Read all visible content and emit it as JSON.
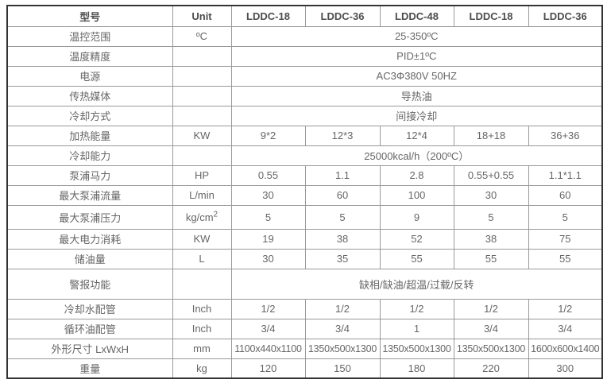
{
  "table": {
    "columns": [
      {
        "label": "型号"
      },
      {
        "label": "Unit"
      },
      {
        "label": "LDDC-18"
      },
      {
        "label": "LDDC-36"
      },
      {
        "label": "LDDC-48"
      },
      {
        "label": "LDDC-18"
      },
      {
        "label": "LDDC-36"
      }
    ],
    "rows": [
      {
        "label": "温控范围",
        "unit": "ºC",
        "span": "25-350ºC"
      },
      {
        "label": "温度精度",
        "unit": "",
        "span": "PID±1ºC"
      },
      {
        "label": "电源",
        "unit": "",
        "span": "AC3Φ380V 50HZ"
      },
      {
        "label": "传热媒体",
        "unit": "",
        "span": "导热油"
      },
      {
        "label": "冷却方式",
        "unit": "",
        "span": "间接冷却"
      },
      {
        "label": "加热能量",
        "unit": "KW",
        "values": [
          "9*2",
          "12*3",
          "12*4",
          "18+18",
          "36+36"
        ]
      },
      {
        "label": "冷却能力",
        "unit": "",
        "span": "25000kcal/h（200ºC）"
      },
      {
        "label": "泵浦马力",
        "unit": "HP",
        "values": [
          "0.55",
          "1.1",
          "2.8",
          "0.55+0.55",
          "1.1*1.1"
        ]
      },
      {
        "label": "最大泵浦流量",
        "unit": "L/min",
        "values": [
          "30",
          "60",
          "100",
          "30",
          "60"
        ]
      },
      {
        "label": "最大泵浦压力",
        "unit": "kg/cm",
        "unit_sup": "2",
        "values": [
          "5",
          "5",
          "9",
          "5",
          "5"
        ],
        "tall": "med"
      },
      {
        "label": "最大电力消耗",
        "unit": "KW",
        "values": [
          "19",
          "38",
          "52",
          "38",
          "75"
        ]
      },
      {
        "label": "储油量",
        "unit": "L",
        "values": [
          "30",
          "35",
          "55",
          "55",
          "55"
        ]
      },
      {
        "label": "警报功能",
        "unit": "",
        "span": "缺相/缺油/超温/过载/反转",
        "tall": "tall"
      },
      {
        "label": "冷却水配管",
        "unit": "Inch",
        "values": [
          "1/2",
          "1/2",
          "1/2",
          "1/2",
          "1/2"
        ]
      },
      {
        "label": "循环油配管",
        "unit": "Inch",
        "values": [
          "3/4",
          "3/4",
          "1",
          "3/4",
          "3/4"
        ]
      },
      {
        "label": "外形尺寸 LxWxH",
        "unit": "mm",
        "values": [
          "1100x440x1100",
          "1350x500x1300",
          "1350x500x1300",
          "1350x500x1300",
          "1600x600x1400"
        ],
        "dims": true
      },
      {
        "label": "重量",
        "unit": "kg",
        "values": [
          "120",
          "150",
          "180",
          "220",
          "300"
        ]
      }
    ]
  },
  "colors": {
    "outer_border": "#333333",
    "inner_border": "#999999",
    "body_text": "#666666",
    "header_text": "#4d4d4d",
    "background": "#ffffff"
  }
}
